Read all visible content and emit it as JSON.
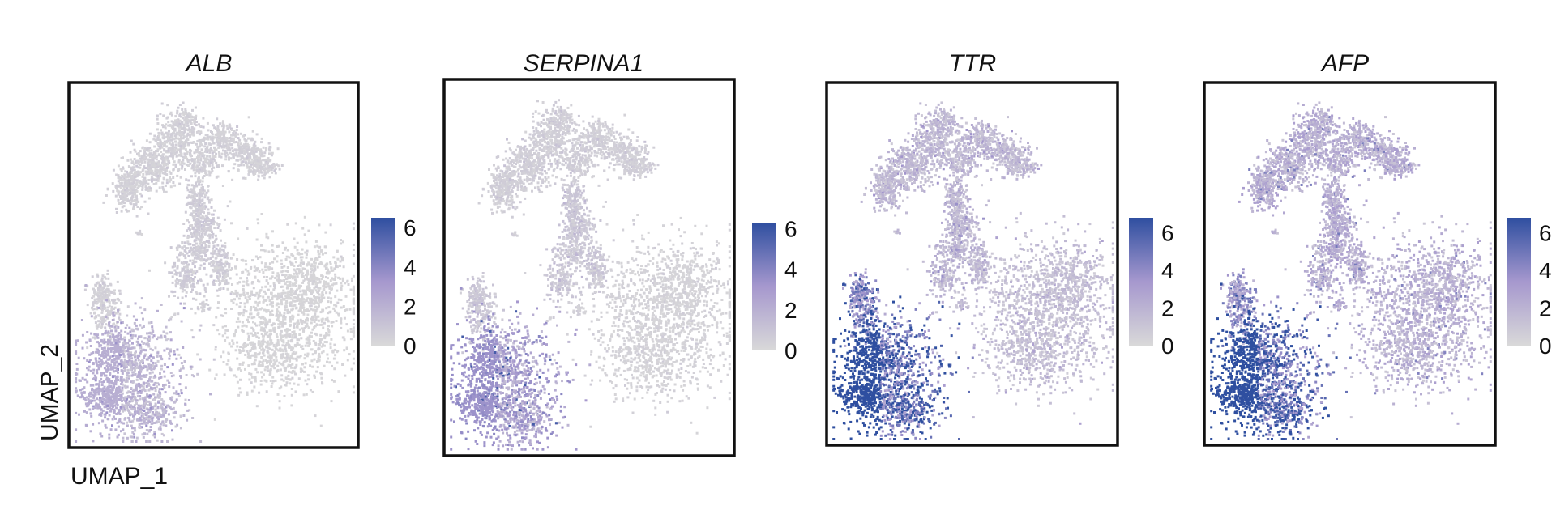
{
  "chart_data": [
    {
      "type": "scatter",
      "title": "ALB",
      "xlabel": "UMAP_1",
      "ylabel": "UMAP_2",
      "legend": {
        "position": "right",
        "ticks": [
          "0",
          "2",
          "4",
          "6"
        ],
        "min": 0,
        "max": 6.5
      },
      "colors": {
        "low": "#d9d9d9",
        "high": "#2f4fa0"
      },
      "grid": false,
      "cluster_mean_expression": {
        "top_complex": 0.4,
        "stem": 0.6,
        "large_right": 0.2,
        "left_small": 0.4,
        "bottom_left": 1.6,
        "small_islands": 0.4
      }
    },
    {
      "type": "scatter",
      "title": "SERPINA1",
      "xlabel": "",
      "ylabel": "",
      "legend": {
        "position": "right",
        "ticks": [
          "0",
          "2",
          "4",
          "6"
        ],
        "min": 0,
        "max": 6.3
      },
      "colors": {
        "low": "#d9d9d9",
        "high": "#2f4fa0"
      },
      "grid": false,
      "cluster_mean_expression": {
        "top_complex": 0.5,
        "stem": 0.8,
        "large_right": 0.3,
        "left_small": 0.8,
        "bottom_left": 2.6,
        "small_islands": 0.5
      }
    },
    {
      "type": "scatter",
      "title": "TTR",
      "xlabel": "",
      "ylabel": "",
      "legend": {
        "position": "right",
        "ticks": [
          "0",
          "2",
          "4",
          "6"
        ],
        "min": 0,
        "max": 6.8
      },
      "colors": {
        "low": "#d9d9d9",
        "high": "#2f4fa0"
      },
      "grid": false,
      "cluster_mean_expression": {
        "top_complex": 1.6,
        "stem": 1.7,
        "large_right": 1.3,
        "left_small": 4.0,
        "bottom_left": 5.3,
        "small_islands": 1.5
      }
    },
    {
      "type": "scatter",
      "title": "AFP",
      "xlabel": "",
      "ylabel": "",
      "legend": {
        "position": "right",
        "ticks": [
          "0",
          "2",
          "4",
          "6"
        ],
        "min": 0,
        "max": 6.8
      },
      "colors": {
        "low": "#d9d9d9",
        "high": "#2f4fa0"
      },
      "grid": false,
      "cluster_mean_expression": {
        "top_complex": 2.1,
        "stem": 2.2,
        "large_right": 2.0,
        "left_small": 3.4,
        "bottom_left": 5.5,
        "small_islands": 2.0
      }
    }
  ]
}
